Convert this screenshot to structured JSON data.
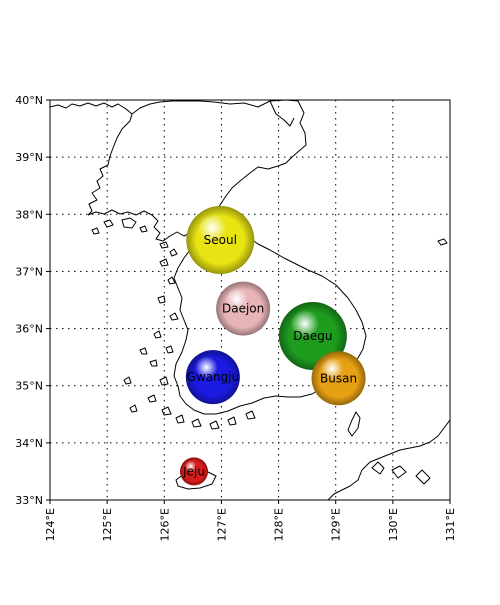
{
  "map": {
    "lon_range": [
      124,
      131
    ],
    "lat_range": [
      33,
      40
    ],
    "grid": "dotted",
    "x_ticks": [
      "124°E",
      "125°E",
      "126°E",
      "127°E",
      "128°E",
      "129°E",
      "130°E",
      "131°E"
    ],
    "y_ticks": [
      "33°N",
      "34°N",
      "35°N",
      "36°N",
      "37°N",
      "38°N",
      "39°N",
      "40°N"
    ],
    "cities": [
      {
        "name": "Seoul",
        "lon": 126.98,
        "lat": 37.55,
        "size": "large",
        "color": "#e8e414"
      },
      {
        "name": "Daejon",
        "lon": 127.38,
        "lat": 36.35,
        "size": "medium",
        "color": "#e7b4b8"
      },
      {
        "name": "Daegu",
        "lon": 128.6,
        "lat": 35.87,
        "size": "large",
        "color": "#1e9c1e"
      },
      {
        "name": "Gwangju",
        "lon": 126.85,
        "lat": 35.15,
        "size": "medium",
        "color": "#1a1ae0"
      },
      {
        "name": "Busan",
        "lon": 129.05,
        "lat": 35.13,
        "size": "medium",
        "color": "#e6a014"
      },
      {
        "name": "Jeju",
        "lon": 126.52,
        "lat": 33.5,
        "size": "small",
        "color": "#d81c1c"
      }
    ]
  }
}
